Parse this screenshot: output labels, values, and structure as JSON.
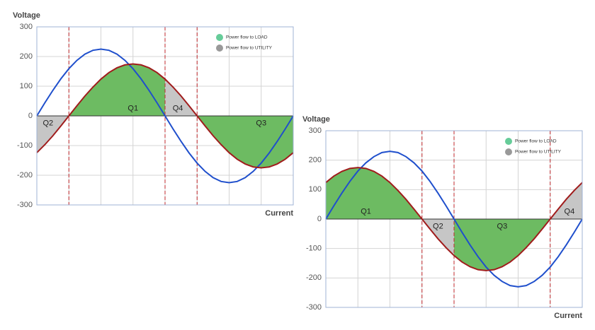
{
  "chart_data": [
    {
      "type": "line",
      "y_label": "Voltage",
      "x_label": "Current",
      "x": [
        0,
        0.25,
        0.5,
        0.75,
        1,
        1.25,
        1.5,
        1.75,
        2,
        2.25,
        2.5,
        2.75,
        3,
        3.25,
        3.5,
        3.75,
        4,
        4.25,
        4.5,
        4.75,
        5,
        5.25,
        5.5,
        5.75,
        6,
        6.25,
        6.5,
        6.75,
        7,
        7.25,
        7.5,
        7.75,
        8
      ],
      "xlim": [
        0,
        8
      ],
      "xticks": [
        0,
        1,
        2,
        3,
        4,
        5,
        6,
        7,
        8
      ],
      "ylim": [
        -300,
        300
      ],
      "yticks": [
        -300,
        -200,
        -100,
        0,
        100,
        200,
        300
      ],
      "grid": true,
      "series": [
        {
          "color": "#1f4fcc",
          "values": [
            0,
            44,
            86,
            125,
            159,
            187,
            208,
            221,
            225,
            221,
            208,
            187,
            159,
            125,
            86,
            44,
            0,
            -44,
            -86,
            -125,
            -159,
            -187,
            -208,
            -221,
            -225,
            -221,
            -208,
            -187,
            -159,
            -125,
            -86,
            -44,
            0
          ]
        },
        {
          "color": "#a01c1c",
          "values": [
            -124,
            -97,
            -67,
            -34,
            0,
            34,
            67,
            97,
            124,
            146,
            162,
            172,
            175,
            172,
            162,
            146,
            124,
            97,
            67,
            34,
            0,
            -34,
            -67,
            -97,
            -124,
            -146,
            -162,
            -172,
            -175,
            -172,
            -162,
            -146,
            -124
          ]
        }
      ],
      "markers": [
        1,
        4,
        5
      ],
      "annotations": [
        {
          "text": "Q2",
          "x": 0.35,
          "y": -25
        },
        {
          "text": "Q1",
          "x": 3,
          "y": 25
        },
        {
          "text": "Q4",
          "x": 4.4,
          "y": 25
        },
        {
          "text": "Q3",
          "x": 7,
          "y": -25
        }
      ],
      "legend": [
        {
          "name": "Power flow to LOAD",
          "color": "#66cc99"
        },
        {
          "name": "Power flow to UTILITY",
          "color": "#999999"
        }
      ],
      "legend_position": "top-right",
      "fill_colors": {
        "load": "#6dbb62",
        "utility": "#c6c6c6"
      }
    },
    {
      "type": "line",
      "y_label": "Voltage",
      "x_label": "Current",
      "x": [
        0,
        0.25,
        0.5,
        0.75,
        1,
        1.25,
        1.5,
        1.75,
        2,
        2.25,
        2.5,
        2.75,
        3,
        3.25,
        3.5,
        3.75,
        4,
        4.25,
        4.5,
        4.75,
        5,
        5.25,
        5.5,
        5.75,
        6,
        6.25,
        6.5,
        6.75,
        7,
        7.25,
        7.5,
        7.75,
        8
      ],
      "xlim": [
        0,
        8
      ],
      "xticks": [
        0,
        1,
        2,
        3,
        4,
        5,
        6,
        7,
        8
      ],
      "ylim": [
        -300,
        300
      ],
      "yticks": [
        -300,
        -200,
        -100,
        0,
        100,
        200,
        300
      ],
      "grid": true,
      "series": [
        {
          "color": "#1f4fcc",
          "values": [
            0,
            45,
            88,
            128,
            163,
            191,
            212,
            226,
            230,
            226,
            212,
            191,
            163,
            128,
            88,
            45,
            0,
            -45,
            -88,
            -128,
            -163,
            -191,
            -212,
            -226,
            -230,
            -226,
            -212,
            -191,
            -163,
            -128,
            -88,
            -45,
            0
          ]
        },
        {
          "color": "#a01c1c",
          "values": [
            124,
            146,
            162,
            172,
            175,
            172,
            162,
            146,
            124,
            97,
            67,
            34,
            0,
            -34,
            -67,
            -97,
            -124,
            -146,
            -162,
            -172,
            -175,
            -172,
            -162,
            -146,
            -124,
            -97,
            -67,
            -34,
            0,
            34,
            67,
            97,
            124
          ]
        }
      ],
      "markers": [
        3,
        4,
        7
      ],
      "annotations": [
        {
          "text": "Q1",
          "x": 1.25,
          "y": 25
        },
        {
          "text": "Q2",
          "x": 3.5,
          "y": -25
        },
        {
          "text": "Q3",
          "x": 5.5,
          "y": -25
        },
        {
          "text": "Q4",
          "x": 7.6,
          "y": 25
        }
      ],
      "legend": [
        {
          "name": "Power flow to LOAD",
          "color": "#66cc99"
        },
        {
          "name": "Power flow to UTILITY",
          "color": "#999999"
        }
      ],
      "legend_position": "top-right",
      "fill_colors": {
        "load": "#6dbb62",
        "utility": "#c6c6c6"
      }
    }
  ]
}
